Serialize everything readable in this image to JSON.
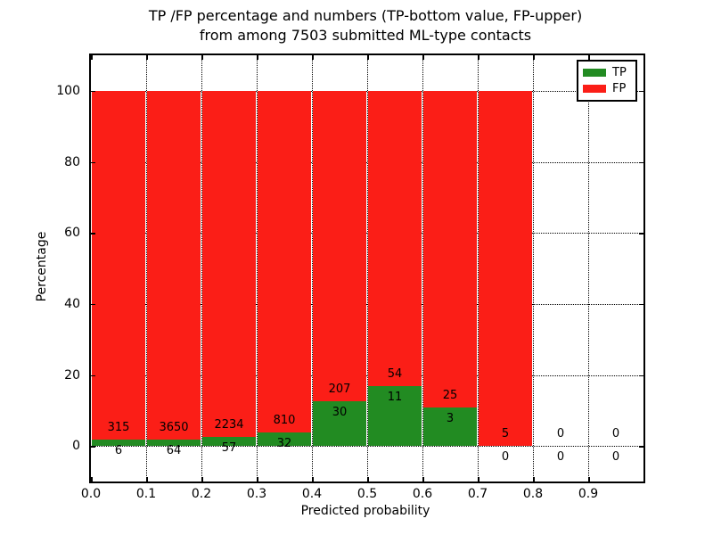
{
  "title": {
    "line1": "TP /FP percentage and numbers (TP-bottom value, FP-upper)",
    "line2": "from among 7503 submitted ML-type contacts"
  },
  "chart_data": {
    "type": "bar",
    "stacked": true,
    "title": "TP /FP percentage and numbers (TP-bottom value, FP-upper) from among 7503 submitted ML-type contacts",
    "total_contacts": 7503,
    "xlabel": "Predicted probability",
    "ylabel": "Percentage",
    "bin_edges": [
      0.0,
      0.1,
      0.2,
      0.3,
      0.4,
      0.5,
      0.6,
      0.7,
      0.8,
      0.9,
      1.0
    ],
    "series": [
      {
        "name": "TP",
        "color": "#228b22",
        "counts": [
          6,
          64,
          57,
          32,
          30,
          11,
          3,
          0,
          0,
          0
        ]
      },
      {
        "name": "FP",
        "color": "#fb1e17",
        "counts": [
          315,
          3650,
          2234,
          810,
          207,
          54,
          25,
          5,
          0,
          0
        ]
      }
    ],
    "bars_total_percentage": 100,
    "xticks": [
      "0.0",
      "0.1",
      "0.2",
      "0.3",
      "0.4",
      "0.5",
      "0.6",
      "0.7",
      "0.8",
      "0.9"
    ],
    "yticks": [
      "0",
      "20",
      "40",
      "60",
      "80",
      "100"
    ],
    "ytick_values": [
      0,
      20,
      40,
      60,
      80,
      100
    ],
    "xlim": [
      0.0,
      1.0
    ],
    "ylim": [
      -10,
      110
    ],
    "grid": "dotted",
    "legend_position": "upper right"
  },
  "legend": {
    "items": [
      {
        "label": "TP",
        "color": "#228b22"
      },
      {
        "label": "FP",
        "color": "#fb1e17"
      }
    ]
  }
}
